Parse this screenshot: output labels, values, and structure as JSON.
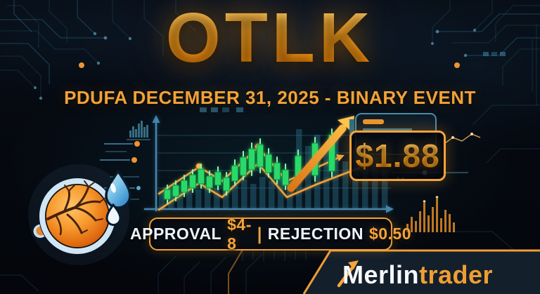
{
  "header": {
    "ticker": "OTLK",
    "subtitle": "PDUFA DECEMBER 31, 2025 - BINARY EVENT"
  },
  "price_box": {
    "value": "$1.88"
  },
  "scenario_bar": {
    "approval_label": "APPROVAL",
    "approval_value": "$4-8",
    "divider": "|",
    "rejection_label": "REJECTION",
    "rejection_value": "$0.50"
  },
  "brand": {
    "name_primary": "Merlin",
    "name_secondary": "trader"
  },
  "icons": {
    "eye": "eye-retina-icon",
    "droplet": "water-droplet-icon",
    "arrow": "up-trend-arrow-icon"
  },
  "colors": {
    "accent_orange": "#f5a43c",
    "deep_orange": "#ee7c02",
    "candle_green": "#2bd968",
    "circuit_teal": "#3e94b8",
    "axis_blue": "#4585ac",
    "background": "#05080f",
    "text_white": "#eef3f8"
  },
  "chart_data": {
    "type": "candlestick",
    "description": "Stylized ascending candlestick chart with rising trend channel and breakout arrow (decorative, no axis tick values shown)",
    "key_prices": {
      "current": 1.88,
      "approval_range": [
        4,
        8
      ],
      "rejection": 0.5
    },
    "axis": {
      "y_axis_x": 222,
      "x_axis_y": 298,
      "x_range": [
        206,
        556
      ],
      "y_range": [
        168,
        298
      ]
    },
    "gridlines_y": [
      193,
      218,
      243,
      268
    ],
    "candles": [
      [
        238,
        264,
        270,
        284,
        290
      ],
      [
        250,
        258,
        264,
        280,
        286
      ],
      [
        262,
        250,
        257,
        274,
        280
      ],
      [
        274,
        242,
        249,
        268,
        274
      ],
      [
        286,
        234,
        241,
        262,
        268
      ],
      [
        298,
        244,
        251,
        268,
        274
      ],
      [
        310,
        238,
        245,
        264,
        270
      ],
      [
        322,
        246,
        253,
        272,
        278
      ],
      [
        334,
        228,
        236,
        258,
        264
      ],
      [
        346,
        216,
        224,
        250,
        256
      ],
      [
        358,
        204,
        212,
        242,
        250
      ],
      [
        370,
        198,
        206,
        238,
        246
      ],
      [
        382,
        212,
        220,
        246,
        252
      ],
      [
        394,
        224,
        232,
        256,
        262
      ],
      [
        406,
        234,
        242,
        264,
        270
      ],
      [
        424,
        214,
        222,
        256,
        262
      ],
      [
        448,
        196,
        204,
        250,
        258
      ],
      [
        472,
        184,
        192,
        244,
        252
      ]
    ],
    "channel": {
      "upper": [
        [
          226,
          276
        ],
        [
          283,
          238
        ],
        [
          316,
          258
        ],
        [
          367,
          210
        ],
        [
          408,
          258
        ],
        [
          483,
          224
        ]
      ],
      "lower": [
        [
          226,
          299
        ],
        [
          283,
          261
        ],
        [
          316,
          281
        ],
        [
          367,
          233
        ],
        [
          408,
          281
        ],
        [
          452,
          262
        ],
        [
          520,
          236
        ]
      ],
      "peak_dots": [
        [
          283,
          237
        ],
        [
          367,
          209
        ]
      ]
    },
    "volume_bars": [
      [
        230,
        272
      ],
      [
        243,
        268
      ],
      [
        256,
        274
      ],
      [
        269,
        264
      ],
      [
        282,
        270
      ],
      [
        295,
        262
      ],
      [
        308,
        268
      ],
      [
        321,
        258
      ],
      [
        334,
        264
      ],
      [
        347,
        256
      ],
      [
        360,
        262
      ],
      [
        373,
        252
      ],
      [
        386,
        258
      ],
      [
        399,
        250
      ],
      [
        412,
        256
      ],
      [
        425,
        184
      ],
      [
        438,
        208
      ],
      [
        451,
        192
      ],
      [
        464,
        218
      ],
      [
        477,
        188
      ],
      [
        491,
        230
      ],
      [
        505,
        212
      ],
      [
        519,
        238
      ],
      [
        533,
        224
      ],
      [
        547,
        244
      ]
    ]
  }
}
